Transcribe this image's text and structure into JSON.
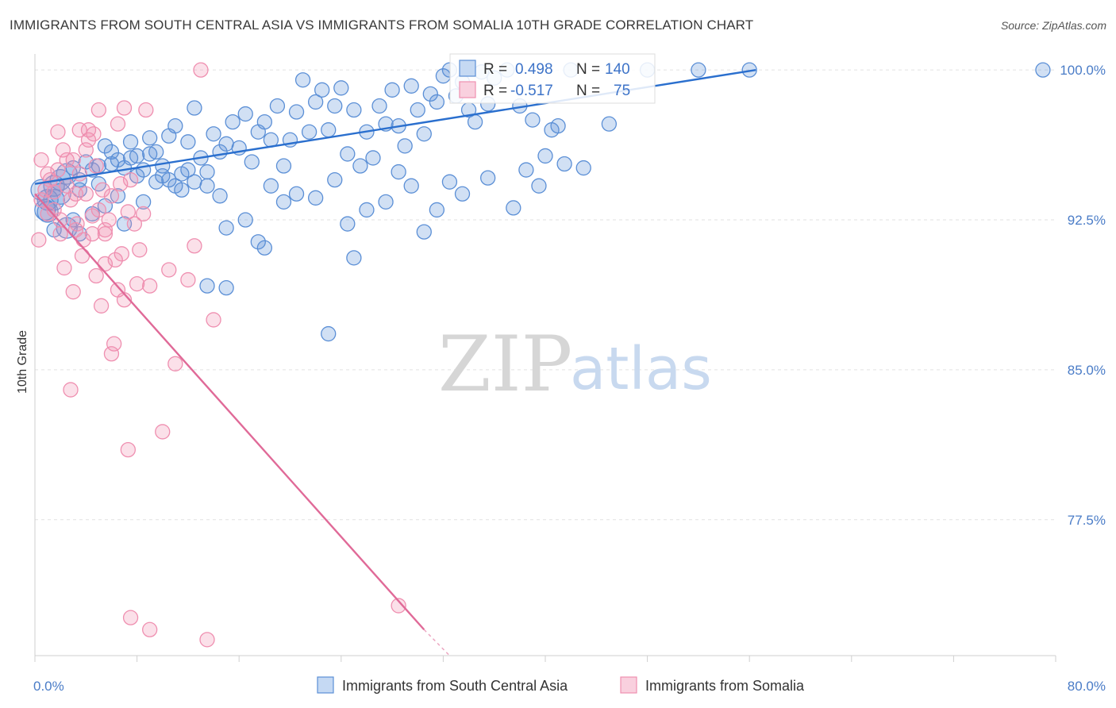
{
  "title": "IMMIGRANTS FROM SOUTH CENTRAL ASIA VS IMMIGRANTS FROM SOMALIA 10TH GRADE CORRELATION CHART",
  "source": "Source: ZipAtlas.com",
  "watermark": {
    "zip": "ZIP",
    "atlas": "atlas"
  },
  "chart_data": {
    "type": "scatter",
    "ylabel": "10th Grade",
    "xlim": [
      0,
      80
    ],
    "ylim": [
      70.7,
      100.8
    ],
    "x_tick_labels": [
      {
        "value": 0,
        "label": "0.0%"
      },
      {
        "value": 80,
        "label": "80.0%"
      }
    ],
    "y_tick_labels": [
      {
        "value": 100,
        "label": "100.0%"
      },
      {
        "value": 92.5,
        "label": "92.5%"
      },
      {
        "value": 85,
        "label": "85.0%"
      },
      {
        "value": 77.5,
        "label": "77.5%"
      }
    ],
    "grid": true,
    "legend_position": "bottom",
    "series": [
      {
        "name": "Immigrants from South Central Asia",
        "color": "#5b8fd6",
        "line_color": "#2a6fce",
        "R": "0.498",
        "N": "140",
        "trend": [
          [
            0,
            94.3
          ],
          [
            56.5,
            100.0
          ]
        ],
        "points": [
          [
            0.5,
            94.0
          ],
          [
            1.0,
            93.5
          ],
          [
            1.5,
            94.2
          ],
          [
            2.0,
            93.8
          ],
          [
            2.5,
            94.8
          ],
          [
            3.0,
            95.1
          ],
          [
            3.5,
            94.5
          ],
          [
            4.0,
            95.4
          ],
          [
            4.5,
            95.0
          ],
          [
            5.0,
            94.3
          ],
          [
            5.5,
            96.2
          ],
          [
            6.0,
            95.3
          ],
          [
            6.5,
            95.5
          ],
          [
            7.0,
            95.1
          ],
          [
            7.5,
            96.4
          ],
          [
            8.0,
            95.7
          ],
          [
            8.5,
            95.0
          ],
          [
            9.0,
            96.6
          ],
          [
            9.5,
            95.9
          ],
          [
            10.0,
            95.2
          ],
          [
            10.5,
            96.7
          ],
          [
            11.0,
            97.2
          ],
          [
            11.5,
            94.8
          ],
          [
            12.0,
            96.4
          ],
          [
            12.5,
            98.1
          ],
          [
            13.0,
            95.6
          ],
          [
            13.5,
            94.9
          ],
          [
            14.0,
            96.8
          ],
          [
            14.5,
            95.9
          ],
          [
            15.0,
            96.3
          ],
          [
            15.5,
            97.4
          ],
          [
            16.0,
            96.1
          ],
          [
            16.5,
            97.8
          ],
          [
            17.0,
            95.4
          ],
          [
            17.5,
            96.9
          ],
          [
            18.0,
            97.4
          ],
          [
            18.5,
            96.5
          ],
          [
            19.0,
            98.2
          ],
          [
            19.5,
            95.2
          ],
          [
            20.0,
            96.5
          ],
          [
            20.5,
            97.9
          ],
          [
            21.0,
            99.5
          ],
          [
            21.5,
            96.9
          ],
          [
            22.0,
            98.4
          ],
          [
            22.5,
            99.0
          ],
          [
            23.0,
            97.0
          ],
          [
            23.5,
            98.2
          ],
          [
            24.0,
            99.1
          ],
          [
            24.5,
            95.8
          ],
          [
            25.0,
            98.0
          ],
          [
            25.5,
            95.2
          ],
          [
            26.0,
            96.9
          ],
          [
            26.5,
            95.6
          ],
          [
            27.0,
            98.2
          ],
          [
            27.5,
            97.3
          ],
          [
            28.0,
            99.0
          ],
          [
            28.5,
            97.2
          ],
          [
            29.0,
            96.2
          ],
          [
            29.5,
            99.2
          ],
          [
            30.0,
            98.0
          ],
          [
            30.5,
            96.8
          ],
          [
            31.0,
            98.8
          ],
          [
            31.5,
            98.4
          ],
          [
            32.0,
            99.7
          ],
          [
            32.5,
            100.0
          ],
          [
            33.0,
            98.7
          ],
          [
            33.5,
            99.4
          ],
          [
            34.0,
            98.0
          ],
          [
            34.5,
            97.4
          ],
          [
            35.0,
            99.9
          ],
          [
            35.5,
            98.3
          ],
          [
            36.0,
            99.6
          ],
          [
            37.0,
            100.0
          ],
          [
            38.0,
            98.2
          ],
          [
            39.0,
            97.5
          ],
          [
            40.0,
            95.7
          ],
          [
            41.0,
            97.2
          ],
          [
            42.0,
            100.0
          ],
          [
            1.0,
            92.9
          ],
          [
            1.5,
            93.5
          ],
          [
            2.5,
            92.1
          ],
          [
            3.0,
            92.5
          ],
          [
            3.5,
            91.8
          ],
          [
            4.5,
            92.8
          ],
          [
            5.5,
            93.2
          ],
          [
            6.5,
            93.7
          ],
          [
            7.0,
            92.3
          ],
          [
            8.5,
            93.4
          ],
          [
            9.5,
            94.4
          ],
          [
            10.5,
            94.5
          ],
          [
            11.5,
            94.0
          ],
          [
            12.5,
            94.4
          ],
          [
            13.5,
            94.2
          ],
          [
            14.5,
            93.7
          ],
          [
            15.0,
            92.1
          ],
          [
            16.5,
            92.5
          ],
          [
            17.5,
            91.4
          ],
          [
            18.5,
            94.2
          ],
          [
            19.5,
            93.4
          ],
          [
            20.5,
            93.8
          ],
          [
            22.0,
            93.6
          ],
          [
            23.5,
            94.5
          ],
          [
            24.5,
            92.3
          ],
          [
            25.0,
            90.6
          ],
          [
            26.0,
            93.0
          ],
          [
            27.5,
            93.4
          ],
          [
            28.5,
            94.9
          ],
          [
            29.5,
            94.2
          ],
          [
            30.5,
            91.9
          ],
          [
            31.5,
            93.0
          ],
          [
            32.5,
            94.4
          ],
          [
            33.5,
            93.8
          ],
          [
            35.5,
            94.6
          ],
          [
            37.5,
            93.1
          ],
          [
            38.5,
            95.0
          ],
          [
            39.5,
            94.2
          ],
          [
            40.5,
            97.0
          ],
          [
            41.5,
            95.3
          ],
          [
            43.0,
            95.1
          ],
          [
            45.0,
            97.3
          ],
          [
            48.0,
            100.0
          ],
          [
            52.0,
            100.0
          ],
          [
            56.0,
            100.0
          ],
          [
            79.0,
            100.0
          ],
          [
            13.5,
            89.2
          ],
          [
            15.0,
            89.1
          ],
          [
            23.0,
            86.8
          ],
          [
            18.0,
            91.1
          ],
          [
            2.0,
            94.5
          ],
          [
            3.5,
            94.0
          ],
          [
            1.5,
            92.0
          ],
          [
            0.8,
            93.0
          ],
          [
            5.0,
            95.2
          ],
          [
            6.0,
            95.9
          ],
          [
            7.5,
            95.6
          ],
          [
            8.0,
            94.7
          ],
          [
            9.0,
            95.8
          ],
          [
            10.0,
            94.7
          ],
          [
            11.0,
            94.2
          ],
          [
            12.0,
            95.0
          ]
        ]
      },
      {
        "name": "Immigrants from Somalia",
        "color": "#ef8fb0",
        "line_color": "#e06a98",
        "R": "-0.517",
        "N": "75",
        "trend": [
          [
            0,
            93.8
          ],
          [
            30.5,
            72.0
          ]
        ],
        "trend_dashed": [
          [
            30.5,
            72.0
          ],
          [
            32.5,
            70.7
          ]
        ],
        "points": [
          [
            0.3,
            91.5
          ],
          [
            0.5,
            93.5
          ],
          [
            0.8,
            94.0
          ],
          [
            1.0,
            92.8
          ],
          [
            1.2,
            94.5
          ],
          [
            1.5,
            93.0
          ],
          [
            1.8,
            95.0
          ],
          [
            2.0,
            92.5
          ],
          [
            2.2,
            96.0
          ],
          [
            2.5,
            94.2
          ],
          [
            2.8,
            93.5
          ],
          [
            3.0,
            95.5
          ],
          [
            3.2,
            92.0
          ],
          [
            3.5,
            94.8
          ],
          [
            3.8,
            91.5
          ],
          [
            4.0,
            93.8
          ],
          [
            4.2,
            96.5
          ],
          [
            4.5,
            92.7
          ],
          [
            4.8,
            95.2
          ],
          [
            5.0,
            93.0
          ],
          [
            5.3,
            94.0
          ],
          [
            5.5,
            91.8
          ],
          [
            5.8,
            92.5
          ],
          [
            6.0,
            93.7
          ],
          [
            6.3,
            90.5
          ],
          [
            6.5,
            89.0
          ],
          [
            6.8,
            90.8
          ],
          [
            7.0,
            88.5
          ],
          [
            7.3,
            92.9
          ],
          [
            7.5,
            94.5
          ],
          [
            8.0,
            89.3
          ],
          [
            8.5,
            92.8
          ],
          [
            9.0,
            89.2
          ],
          [
            2.8,
            84.0
          ],
          [
            3.5,
            97.0
          ],
          [
            4.2,
            97.0
          ],
          [
            4.0,
            96.0
          ],
          [
            4.6,
            96.8
          ],
          [
            5.0,
            98.0
          ],
          [
            5.5,
            92.0
          ],
          [
            6.5,
            97.3
          ],
          [
            7.0,
            98.1
          ],
          [
            1.8,
            96.9
          ],
          [
            2.5,
            95.5
          ],
          [
            3.2,
            93.8
          ],
          [
            4.5,
            91.8
          ],
          [
            5.5,
            90.3
          ],
          [
            6.2,
            86.3
          ],
          [
            6.0,
            85.8
          ],
          [
            7.3,
            81.0
          ],
          [
            8.7,
            98.0
          ],
          [
            10.0,
            81.9
          ],
          [
            10.5,
            90.0
          ],
          [
            11.0,
            85.3
          ],
          [
            12.0,
            89.5
          ],
          [
            12.5,
            91.2
          ],
          [
            13.0,
            100.0
          ],
          [
            14.0,
            87.5
          ],
          [
            7.5,
            72.6
          ],
          [
            9.0,
            72.0
          ],
          [
            13.5,
            71.5
          ],
          [
            28.5,
            73.2
          ],
          [
            0.5,
            95.5
          ],
          [
            1.0,
            94.8
          ],
          [
            1.5,
            93.9
          ],
          [
            2.0,
            91.8
          ],
          [
            2.3,
            90.1
          ],
          [
            3.0,
            88.9
          ],
          [
            3.3,
            92.3
          ],
          [
            3.7,
            90.7
          ],
          [
            4.8,
            89.7
          ],
          [
            5.2,
            88.2
          ],
          [
            6.7,
            94.3
          ],
          [
            7.8,
            92.3
          ],
          [
            8.2,
            91.0
          ]
        ]
      }
    ]
  },
  "legend": {
    "items": [
      {
        "label": "Immigrants from South Central Asia",
        "color": "#5b8fd6"
      },
      {
        "label": "Immigrants from Somalia",
        "color": "#ef8fb0"
      }
    ]
  },
  "stats_box": {
    "rows": [
      {
        "r_label": "R =",
        "r_value": "0.498",
        "n_label": "N =",
        "n_value": "140",
        "color": "#5b8fd6"
      },
      {
        "r_label": "R =",
        "r_value": "-0.517",
        "n_label": "N =",
        "n_value": "75",
        "color": "#ef8fb0"
      }
    ]
  }
}
